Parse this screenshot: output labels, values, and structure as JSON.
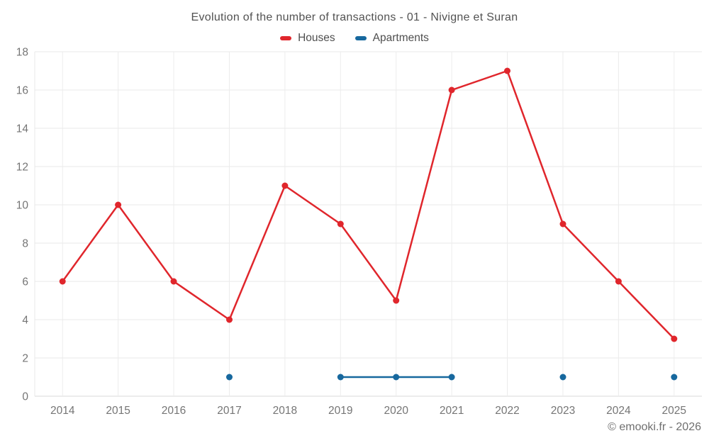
{
  "title": "Evolution of the number of transactions - 01 - Nivigne et Suran",
  "legend": [
    {
      "label": "Houses",
      "color": "#e0262c"
    },
    {
      "label": "Apartments",
      "color": "#17689e"
    }
  ],
  "copyright": "© emooki.fr - 2026",
  "chart_data": {
    "type": "line",
    "title": "Evolution of the number of transactions - 01 - Nivigne et Suran",
    "categories": [
      "2014",
      "2015",
      "2016",
      "2017",
      "2018",
      "2019",
      "2020",
      "2021",
      "2022",
      "2023",
      "2024",
      "2025"
    ],
    "series": [
      {
        "name": "Houses",
        "color": "#e0262c",
        "values": [
          6,
          10,
          6,
          4,
          11,
          9,
          5,
          16,
          17,
          9,
          6,
          3
        ]
      },
      {
        "name": "Apartments",
        "color": "#17689e",
        "values": [
          null,
          null,
          null,
          1,
          null,
          1,
          1,
          1,
          null,
          1,
          null,
          1
        ]
      }
    ],
    "xlabel": "",
    "ylabel": "",
    "ylim": [
      0,
      18
    ],
    "yticks": [
      0,
      2,
      4,
      6,
      8,
      10,
      12,
      14,
      16,
      18
    ],
    "grid": true,
    "legend_position": "top",
    "gap_policy": "null values break the line"
  }
}
